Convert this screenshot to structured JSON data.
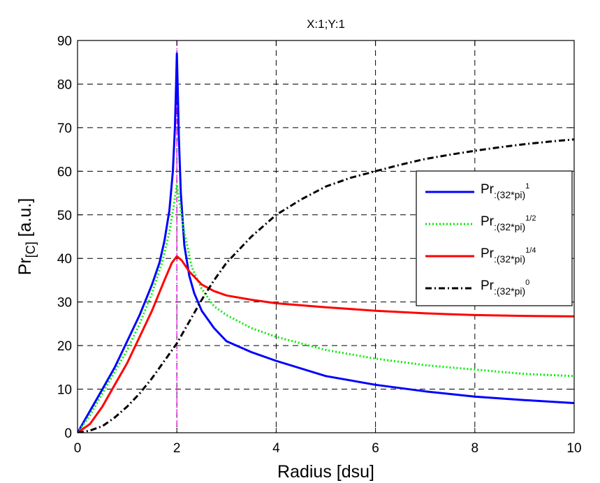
{
  "chart_data": {
    "type": "line",
    "title": "X:1;Y:1",
    "xlabel": "Radius [dsu]",
    "ylabel": {
      "base": "Pr",
      "sub": "[C]",
      "rest": " [a.u.]"
    },
    "xlim": [
      0,
      10
    ],
    "ylim": [
      0,
      90
    ],
    "xticks": [
      0,
      2,
      4,
      6,
      8,
      10
    ],
    "yticks": [
      0,
      10,
      20,
      30,
      40,
      50,
      60,
      70,
      80,
      90
    ],
    "grid": true,
    "legend_position": "right",
    "marker_line": {
      "x": 2,
      "color": "#ff00ff",
      "style": "dash-dot"
    },
    "series": [
      {
        "label": {
          "base": "Pr",
          "sub": ":(32*pi)",
          "sup": "1"
        },
        "color": "#0000ff",
        "style": "solid",
        "x": [
          0,
          0.25,
          0.5,
          0.75,
          1.0,
          1.25,
          1.5,
          1.65,
          1.75,
          1.85,
          1.92,
          1.96,
          1.98,
          2.0,
          2.02,
          2.04,
          2.08,
          2.15,
          2.25,
          2.35,
          2.5,
          2.75,
          3.0,
          3.5,
          4.0,
          5.0,
          6.0,
          7.0,
          8.0,
          9.0,
          10.0
        ],
        "y": [
          0,
          5,
          10,
          15,
          21,
          27,
          34,
          39,
          44,
          51,
          60,
          70,
          78,
          87,
          78,
          68,
          55,
          43,
          36,
          32,
          28,
          24,
          21,
          18.5,
          16.5,
          13,
          11,
          9.5,
          8.3,
          7.5,
          6.8
        ]
      },
      {
        "label": {
          "base": "Pr",
          "sub": ":(32*pi)",
          "sup": "1/2"
        },
        "color": "#00ee00",
        "style": "dotted",
        "x": [
          0,
          0.25,
          0.5,
          0.75,
          1.0,
          1.25,
          1.5,
          1.7,
          1.85,
          1.95,
          2.0,
          2.05,
          2.15,
          2.3,
          2.5,
          2.75,
          3.0,
          3.5,
          4.0,
          5.0,
          6.0,
          7.0,
          8.0,
          9.0,
          10.0
        ],
        "y": [
          0,
          4,
          9,
          14,
          19,
          25,
          32,
          39,
          46,
          53,
          57,
          53,
          46,
          38,
          33,
          29,
          27,
          24,
          22,
          19,
          17,
          15.5,
          14.5,
          13.5,
          13
        ]
      },
      {
        "label": {
          "base": "Pr",
          "sub": ":(32*pi)",
          "sup": "1/4"
        },
        "color": "#ff0000",
        "style": "solid",
        "x": [
          0,
          0.25,
          0.5,
          0.75,
          1.0,
          1.25,
          1.5,
          1.75,
          1.9,
          2.0,
          2.1,
          2.25,
          2.5,
          2.75,
          3.0,
          3.5,
          4.0,
          5.0,
          6.0,
          7.0,
          8.0,
          9.0,
          10.0
        ],
        "y": [
          0,
          2,
          6,
          11,
          16,
          22,
          28,
          35,
          39,
          40.5,
          39.5,
          37,
          34,
          32.5,
          31.5,
          30.5,
          29.7,
          28.8,
          28,
          27.4,
          27,
          26.8,
          26.7
        ]
      },
      {
        "label": {
          "base": "Pr",
          "sub": ":(32*pi)",
          "sup": "0"
        },
        "color": "#000000",
        "style": "dash-dot",
        "x": [
          0,
          0.25,
          0.5,
          0.75,
          1.0,
          1.25,
          1.5,
          1.75,
          2.0,
          2.25,
          2.5,
          2.75,
          3.0,
          3.5,
          4.0,
          4.5,
          5.0,
          5.5,
          6.0,
          6.5,
          7.0,
          7.5,
          8.0,
          8.5,
          9.0,
          9.5,
          10.0
        ],
        "y": [
          0,
          0.5,
          1.5,
          3.5,
          6,
          9,
          12.5,
          16.5,
          20.5,
          25.5,
          30.5,
          35,
          39,
          45,
          50,
          53.5,
          56.5,
          58.5,
          60,
          61.5,
          62.8,
          63.8,
          64.7,
          65.5,
          66.2,
          66.8,
          67.3
        ]
      }
    ]
  }
}
